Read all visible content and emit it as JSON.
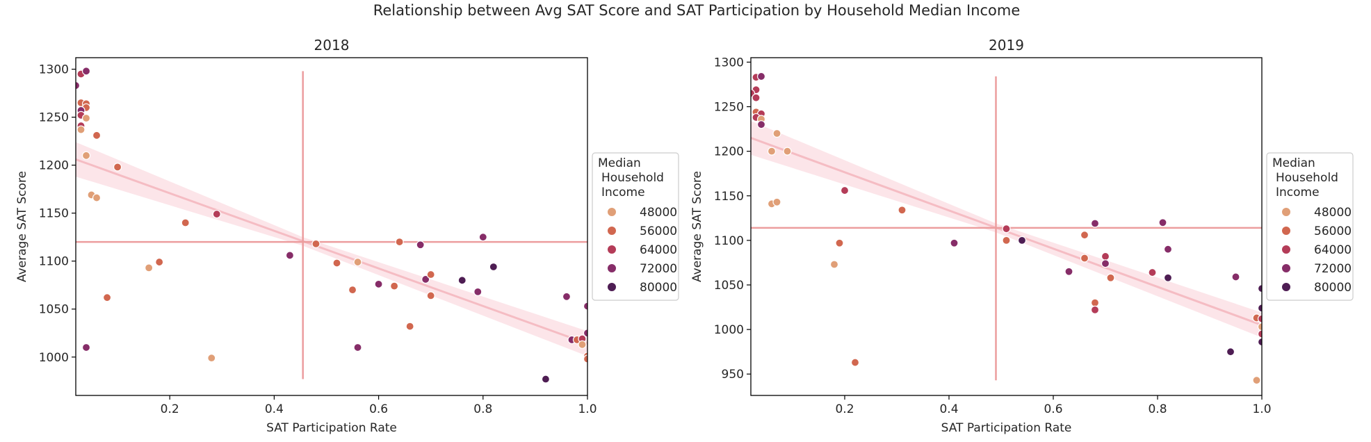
{
  "figure_title": "Relationship between Avg SAT Score and SAT Participation by Household Median Income",
  "legend": {
    "title_lines": [
      "Median",
      "Household",
      "Income"
    ],
    "entries": [
      {
        "label": "48000",
        "color": "#e09f77"
      },
      {
        "label": "56000",
        "color": "#d1674f"
      },
      {
        "label": "64000",
        "color": "#b43c58"
      },
      {
        "label": "72000",
        "color": "#862d68"
      },
      {
        "label": "80000",
        "color": "#4e1d53"
      }
    ]
  },
  "colors": {
    "crosshair": "#ec9d9e",
    "regression_line": "#f5bcc3",
    "confidence_band": "#fbe1e5",
    "marker_edge": "#ffffff"
  },
  "chart_data": [
    {
      "type": "scatter",
      "title": "2018",
      "xlabel": "SAT Participation Rate",
      "ylabel": "Average SAT Score",
      "xlim": [
        0.02,
        1.0
      ],
      "ylim": [
        960,
        1312
      ],
      "xticks": [
        0.2,
        0.4,
        0.6,
        0.8,
        1.0
      ],
      "xtick_labels": [
        "0.2",
        "0.4",
        "0.6",
        "0.8",
        "1.0"
      ],
      "yticks": [
        1000,
        1050,
        1100,
        1150,
        1200,
        1250,
        1300
      ],
      "ytick_labels": [
        "1000",
        "1050",
        "1100",
        "1150",
        "1200",
        "1250",
        "1300"
      ],
      "grid": false,
      "legend_position": "right",
      "mean_x": 0.455,
      "mean_y": 1120,
      "crosshair_y_range": [
        977,
        1298
      ],
      "crosshair_x_range": [
        0.02,
        1.0
      ],
      "regression": {
        "x": [
          0.02,
          1.0
        ],
        "y": [
          1206,
          1014
        ]
      },
      "confidence_band": {
        "x": [
          0.02,
          0.455,
          1.0
        ],
        "upper": [
          1224,
          1125,
          1027
        ],
        "lower": [
          1188,
          1116,
          1001
        ]
      },
      "points": [
        {
          "x": 0.02,
          "y": 1283,
          "income": 72000
        },
        {
          "x": 0.03,
          "y": 1295,
          "income": 64000
        },
        {
          "x": 0.04,
          "y": 1298,
          "income": 72000
        },
        {
          "x": 0.03,
          "y": 1265,
          "income": 56000
        },
        {
          "x": 0.04,
          "y": 1264,
          "income": 56000
        },
        {
          "x": 0.04,
          "y": 1260,
          "income": 56000
        },
        {
          "x": 0.03,
          "y": 1257,
          "income": 72000
        },
        {
          "x": 0.03,
          "y": 1252,
          "income": 64000
        },
        {
          "x": 0.04,
          "y": 1249,
          "income": 48000
        },
        {
          "x": 0.03,
          "y": 1241,
          "income": 64000
        },
        {
          "x": 0.03,
          "y": 1237,
          "income": 48000
        },
        {
          "x": 0.06,
          "y": 1231,
          "income": 56000
        },
        {
          "x": 0.04,
          "y": 1210,
          "income": 48000
        },
        {
          "x": 0.1,
          "y": 1198,
          "income": 56000
        },
        {
          "x": 0.05,
          "y": 1169,
          "income": 48000
        },
        {
          "x": 0.06,
          "y": 1166,
          "income": 48000
        },
        {
          "x": 0.23,
          "y": 1140,
          "income": 56000
        },
        {
          "x": 0.29,
          "y": 1149,
          "income": 64000
        },
        {
          "x": 0.18,
          "y": 1099,
          "income": 56000
        },
        {
          "x": 0.16,
          "y": 1093,
          "income": 48000
        },
        {
          "x": 0.08,
          "y": 1062,
          "income": 56000
        },
        {
          "x": 0.04,
          "y": 1010,
          "income": 72000
        },
        {
          "x": 0.28,
          "y": 999,
          "income": 48000
        },
        {
          "x": 0.43,
          "y": 1106,
          "income": 72000
        },
        {
          "x": 0.48,
          "y": 1118,
          "income": 56000
        },
        {
          "x": 0.52,
          "y": 1098,
          "income": 56000
        },
        {
          "x": 0.56,
          "y": 1099,
          "income": 48000
        },
        {
          "x": 0.55,
          "y": 1070,
          "income": 56000
        },
        {
          "x": 0.56,
          "y": 1010,
          "income": 72000
        },
        {
          "x": 0.6,
          "y": 1076,
          "income": 72000
        },
        {
          "x": 0.63,
          "y": 1074,
          "income": 56000
        },
        {
          "x": 0.64,
          "y": 1120,
          "income": 56000
        },
        {
          "x": 0.66,
          "y": 1032,
          "income": 56000
        },
        {
          "x": 0.68,
          "y": 1117,
          "income": 72000
        },
        {
          "x": 0.69,
          "y": 1081,
          "income": 72000
        },
        {
          "x": 0.7,
          "y": 1086,
          "income": 56000
        },
        {
          "x": 0.7,
          "y": 1064,
          "income": 56000
        },
        {
          "x": 0.76,
          "y": 1080,
          "income": 80000
        },
        {
          "x": 0.79,
          "y": 1068,
          "income": 72000
        },
        {
          "x": 0.8,
          "y": 1125,
          "income": 72000
        },
        {
          "x": 0.82,
          "y": 1094,
          "income": 80000
        },
        {
          "x": 0.92,
          "y": 977,
          "income": 80000
        },
        {
          "x": 0.96,
          "y": 1063,
          "income": 72000
        },
        {
          "x": 0.97,
          "y": 1018,
          "income": 72000
        },
        {
          "x": 0.98,
          "y": 1018,
          "income": 56000
        },
        {
          "x": 0.99,
          "y": 1019,
          "income": 64000
        },
        {
          "x": 0.99,
          "y": 1013,
          "income": 48000
        },
        {
          "x": 1.0,
          "y": 1053,
          "income": 72000
        },
        {
          "x": 1.0,
          "y": 1025,
          "income": 72000
        },
        {
          "x": 1.0,
          "y": 1001,
          "income": 56000
        },
        {
          "x": 1.0,
          "y": 998,
          "income": 56000
        }
      ]
    },
    {
      "type": "scatter",
      "title": "2019",
      "xlabel": "SAT Participation Rate",
      "ylabel": "Average SAT Score",
      "xlim": [
        0.02,
        1.0
      ],
      "ylim": [
        926,
        1305
      ],
      "xticks": [
        0.2,
        0.4,
        0.6,
        0.8,
        1.0
      ],
      "xtick_labels": [
        "0.2",
        "0.4",
        "0.6",
        "0.8",
        "1.0"
      ],
      "yticks": [
        950,
        1000,
        1050,
        1100,
        1150,
        1200,
        1250,
        1300
      ],
      "ytick_labels": [
        "950",
        "1000",
        "1050",
        "1100",
        "1150",
        "1200",
        "1250",
        "1300"
      ],
      "grid": false,
      "legend_position": "right",
      "mean_x": 0.49,
      "mean_y": 1114,
      "crosshair_y_range": [
        943,
        1284
      ],
      "crosshair_x_range": [
        0.02,
        1.0
      ],
      "regression": {
        "x": [
          0.02,
          1.0
        ],
        "y": [
          1215,
          1005
        ]
      },
      "confidence_band": {
        "x": [
          0.02,
          0.49,
          1.0
        ],
        "upper": [
          1234,
          1119,
          1019
        ],
        "lower": [
          1196,
          1109,
          991
        ]
      },
      "points": [
        {
          "x": 0.03,
          "y": 1283,
          "income": 64000
        },
        {
          "x": 0.04,
          "y": 1284,
          "income": 72000
        },
        {
          "x": 0.03,
          "y": 1269,
          "income": 64000
        },
        {
          "x": 0.02,
          "y": 1265,
          "income": 64000
        },
        {
          "x": 0.03,
          "y": 1260,
          "income": 64000
        },
        {
          "x": 0.03,
          "y": 1244,
          "income": 56000
        },
        {
          "x": 0.04,
          "y": 1242,
          "income": 64000
        },
        {
          "x": 0.03,
          "y": 1238,
          "income": 64000
        },
        {
          "x": 0.04,
          "y": 1236,
          "income": 48000
        },
        {
          "x": 0.04,
          "y": 1230,
          "income": 72000
        },
        {
          "x": 0.07,
          "y": 1220,
          "income": 48000
        },
        {
          "x": 0.06,
          "y": 1200,
          "income": 48000
        },
        {
          "x": 0.09,
          "y": 1200,
          "income": 48000
        },
        {
          "x": 0.06,
          "y": 1141,
          "income": 48000
        },
        {
          "x": 0.07,
          "y": 1143,
          "income": 48000
        },
        {
          "x": 0.2,
          "y": 1156,
          "income": 64000
        },
        {
          "x": 0.31,
          "y": 1134,
          "income": 56000
        },
        {
          "x": 0.19,
          "y": 1097,
          "income": 56000
        },
        {
          "x": 0.18,
          "y": 1073,
          "income": 48000
        },
        {
          "x": 0.22,
          "y": 963,
          "income": 56000
        },
        {
          "x": 0.41,
          "y": 1097,
          "income": 72000
        },
        {
          "x": 0.51,
          "y": 1113,
          "income": 64000
        },
        {
          "x": 0.51,
          "y": 1100,
          "income": 56000
        },
        {
          "x": 0.54,
          "y": 1100,
          "income": 80000
        },
        {
          "x": 0.63,
          "y": 1065,
          "income": 72000
        },
        {
          "x": 0.66,
          "y": 1106,
          "income": 56000
        },
        {
          "x": 0.66,
          "y": 1080,
          "income": 56000
        },
        {
          "x": 0.68,
          "y": 1119,
          "income": 72000
        },
        {
          "x": 0.68,
          "y": 1030,
          "income": 56000
        },
        {
          "x": 0.68,
          "y": 1022,
          "income": 64000
        },
        {
          "x": 0.7,
          "y": 1082,
          "income": 64000
        },
        {
          "x": 0.7,
          "y": 1074,
          "income": 72000
        },
        {
          "x": 0.71,
          "y": 1058,
          "income": 56000
        },
        {
          "x": 0.79,
          "y": 1064,
          "income": 64000
        },
        {
          "x": 0.81,
          "y": 1120,
          "income": 72000
        },
        {
          "x": 0.82,
          "y": 1090,
          "income": 72000
        },
        {
          "x": 0.82,
          "y": 1058,
          "income": 80000
        },
        {
          "x": 0.94,
          "y": 975,
          "income": 80000
        },
        {
          "x": 0.95,
          "y": 1059,
          "income": 72000
        },
        {
          "x": 0.99,
          "y": 1013,
          "income": 56000
        },
        {
          "x": 0.99,
          "y": 943,
          "income": 48000
        },
        {
          "x": 1.0,
          "y": 1046,
          "income": 80000
        },
        {
          "x": 1.0,
          "y": 1024,
          "income": 80000
        },
        {
          "x": 1.0,
          "y": 1012,
          "income": 64000
        },
        {
          "x": 1.0,
          "y": 1003,
          "income": 48000
        },
        {
          "x": 1.0,
          "y": 995,
          "income": 64000
        },
        {
          "x": 1.0,
          "y": 986,
          "income": 80000
        }
      ]
    }
  ]
}
